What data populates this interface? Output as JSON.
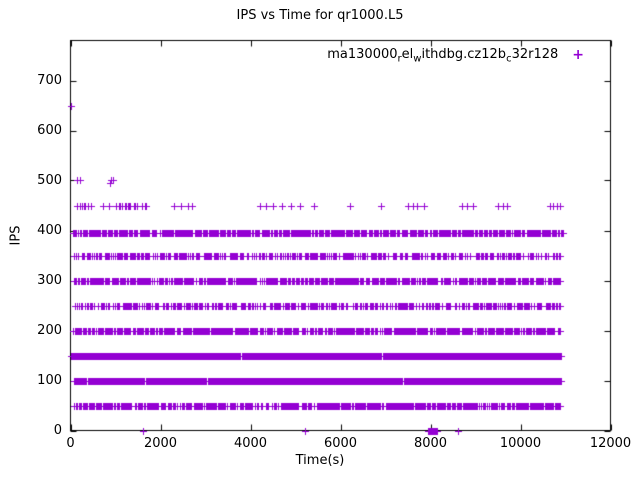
{
  "chart_data": {
    "type": "scatter",
    "title": "IPS vs Time for qr1000.L5",
    "xlabel": "Time(s)",
    "ylabel": "IPS",
    "xlim": [
      0,
      12000
    ],
    "ylim": [
      0,
      780
    ],
    "x_ticks": [
      0,
      2000,
      4000,
      6000,
      8000,
      10000,
      12000
    ],
    "y_ticks": [
      0,
      100,
      200,
      300,
      400,
      500,
      600,
      700
    ],
    "grid": false,
    "legend_position": "top-right-inside",
    "marker": "+",
    "series": [
      {
        "name": "ma130000_rel_withdbg.cz12b_c32r128",
        "legend_parts": [
          {
            "text": "ma130000"
          },
          {
            "sub": "r"
          },
          {
            "text": "el"
          },
          {
            "sub": "w"
          },
          {
            "text": "ithdbg.cz12b"
          },
          {
            "sub": "c"
          },
          {
            "text": "32r128"
          }
        ],
        "color": "#9400d3",
        "bands": [
          {
            "y": 50,
            "x_start": 60,
            "x_end": 10900,
            "count": 800
          },
          {
            "y": 100,
            "x_start": 60,
            "x_end": 10900,
            "count": 2200
          },
          {
            "y": 150,
            "x_start": 10,
            "x_end": 10900,
            "count": 3000
          },
          {
            "y": 200,
            "x_start": 60,
            "x_end": 10900,
            "count": 950
          },
          {
            "y": 250,
            "x_start": 60,
            "x_end": 10900,
            "count": 500
          },
          {
            "y": 300,
            "x_start": 60,
            "x_end": 10900,
            "count": 800
          },
          {
            "y": 350,
            "x_start": 60,
            "x_end": 10900,
            "count": 450
          },
          {
            "y": 395,
            "x_start": 60,
            "x_end": 10950,
            "count": 900
          },
          {
            "y": 450,
            "x_start": 90,
            "x_end": 1800,
            "count": 32
          },
          {
            "y": 0,
            "x_start": 7950,
            "x_end": 8150,
            "count": 40
          }
        ],
        "points": [
          [
            150,
            500
          ],
          [
            210,
            500
          ],
          [
            870,
            495
          ],
          [
            900,
            500
          ],
          [
            935,
            500
          ],
          [
            15,
            650
          ],
          [
            1600,
            0
          ],
          [
            5200,
            0
          ],
          [
            8600,
            0
          ],
          [
            2300,
            450
          ],
          [
            2450,
            450
          ],
          [
            2600,
            450
          ],
          [
            2700,
            450
          ],
          [
            4200,
            450
          ],
          [
            4350,
            450
          ],
          [
            4500,
            450
          ],
          [
            4700,
            450
          ],
          [
            4900,
            450
          ],
          [
            5100,
            450
          ],
          [
            5400,
            450
          ],
          [
            6200,
            450
          ],
          [
            6900,
            450
          ],
          [
            7500,
            450
          ],
          [
            7600,
            450
          ],
          [
            7700,
            450
          ],
          [
            7850,
            450
          ],
          [
            8700,
            450
          ],
          [
            8800,
            450
          ],
          [
            8950,
            450
          ],
          [
            9500,
            450
          ],
          [
            9600,
            450
          ],
          [
            9700,
            450
          ],
          [
            10650,
            450
          ],
          [
            10720,
            450
          ],
          [
            10800,
            450
          ],
          [
            10880,
            450
          ]
        ]
      }
    ]
  }
}
